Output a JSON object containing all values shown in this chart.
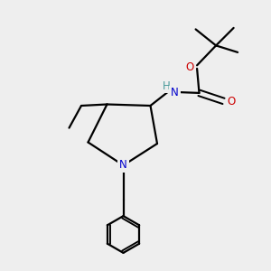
{
  "bg_color": "#eeeeee",
  "atom_colors": {
    "C": "#000000",
    "N": "#0000cc",
    "O": "#cc0000",
    "NH_color": "#4a9a9a"
  },
  "bond_color": "#000000",
  "bond_width": 1.6,
  "font_size_atom": 8.5,
  "title": ""
}
